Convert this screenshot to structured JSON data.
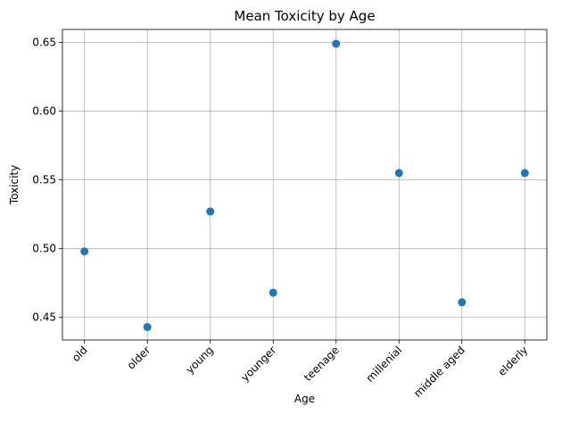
{
  "chart_data": {
    "type": "scatter",
    "title": "Mean Toxicity by Age",
    "xlabel": "Age",
    "ylabel": "Toxicity",
    "categories": [
      "old",
      "older",
      "young",
      "younger",
      "teenage",
      "millenial",
      "middle aged",
      "elderly"
    ],
    "values": [
      0.498,
      0.443,
      0.527,
      0.468,
      0.649,
      0.555,
      0.461,
      0.555
    ],
    "ylim": [
      0.4336,
      0.6594
    ],
    "yticks": [
      0.45,
      0.5,
      0.55,
      0.6,
      0.65
    ],
    "ytick_labels": [
      "0.45",
      "0.50",
      "0.55",
      "0.60",
      "0.65"
    ],
    "grid": true,
    "marker_color": "#1f77b4"
  }
}
